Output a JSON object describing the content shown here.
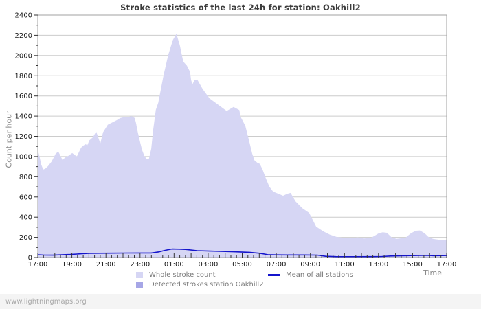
{
  "chart": {
    "title": "Stroke statistics of the last 24h for station: Oakhill2",
    "ylabel": "Count per hour",
    "xlabel": "Time"
  },
  "legend": {
    "items": [
      {
        "label": "Whole stroke count",
        "swatch": "#d6d6f4",
        "kind": "area"
      },
      {
        "label": "Detected strokes station Oakhill2",
        "swatch": "#a6a6e6",
        "kind": "area"
      },
      {
        "label": "Mean of all stations",
        "swatch": "#1414cc",
        "kind": "line"
      }
    ]
  },
  "footer": {
    "watermark": "www.lightningmaps.org"
  },
  "colors": {
    "whole_area": "#d6d6f4",
    "detected_area": "#a6a6e6",
    "mean_line": "#1414cc",
    "gridline": "#cccccc",
    "frame": "#a0a0a0",
    "tick": "#333333"
  },
  "chart_data": {
    "type": "area",
    "title": "Stroke statistics of the last 24h for station: Oakhill2",
    "xlabel": "Time",
    "ylabel": "Count per hour",
    "ylim": [
      0,
      2400
    ],
    "y_tick_step": 200,
    "y_minor_step": 100,
    "grid": "horizontal",
    "legend_position": "bottom",
    "x_axis": {
      "unit": "hours since 17:00",
      "span_hours": 24,
      "major_tick_hours": 1,
      "minor_tick_minutes": 20,
      "label_every_hours": 2,
      "tick_labels": [
        "17:00",
        "19:00",
        "21:00",
        "23:00",
        "01:00",
        "03:00",
        "05:00",
        "07:00",
        "09:00",
        "11:00",
        "13:00",
        "15:00",
        "17:00"
      ]
    },
    "series": [
      {
        "id": "whole-stroke-area",
        "name": "Whole stroke count",
        "type": "area",
        "color": "#d6d6f4",
        "points": [
          [
            0,
            1065
          ],
          [
            0.1,
            1000
          ],
          [
            0.2,
            920
          ],
          [
            0.32,
            872
          ],
          [
            0.44,
            880
          ],
          [
            0.6,
            905
          ],
          [
            0.81,
            950
          ],
          [
            1.05,
            1027
          ],
          [
            1.2,
            1050
          ],
          [
            1.35,
            1000
          ],
          [
            1.45,
            966
          ],
          [
            1.61,
            990
          ],
          [
            1.81,
            1009
          ],
          [
            2.02,
            1034
          ],
          [
            2.29,
            1000
          ],
          [
            2.54,
            1088
          ],
          [
            2.7,
            1111
          ],
          [
            2.82,
            1122
          ],
          [
            2.9,
            1109
          ],
          [
            3.03,
            1160
          ],
          [
            3.23,
            1190
          ],
          [
            3.43,
            1247
          ],
          [
            3.67,
            1130
          ],
          [
            3.83,
            1240
          ],
          [
            4.11,
            1315
          ],
          [
            4.36,
            1336
          ],
          [
            4.64,
            1360
          ],
          [
            4.84,
            1381
          ],
          [
            5.04,
            1388
          ],
          [
            5.33,
            1392
          ],
          [
            5.5,
            1400
          ],
          [
            5.69,
            1381
          ],
          [
            5.77,
            1330
          ],
          [
            5.85,
            1258
          ],
          [
            5.97,
            1168
          ],
          [
            6.12,
            1066
          ],
          [
            6.25,
            1009
          ],
          [
            6.38,
            976
          ],
          [
            6.52,
            975
          ],
          [
            6.66,
            1077
          ],
          [
            6.77,
            1258
          ],
          [
            6.93,
            1463
          ],
          [
            7.07,
            1531
          ],
          [
            7.38,
            1803
          ],
          [
            7.66,
            2007
          ],
          [
            7.93,
            2154
          ],
          [
            8.14,
            2215
          ],
          [
            8.34,
            2098
          ],
          [
            8.54,
            1939
          ],
          [
            8.75,
            1900
          ],
          [
            8.94,
            1837
          ],
          [
            9.0,
            1757
          ],
          [
            9.08,
            1716
          ],
          [
            9.2,
            1755
          ],
          [
            9.36,
            1762
          ],
          [
            9.68,
            1667
          ],
          [
            10.08,
            1576
          ],
          [
            10.49,
            1525
          ],
          [
            11.09,
            1451
          ],
          [
            11.49,
            1490
          ],
          [
            11.83,
            1460
          ],
          [
            11.9,
            1395
          ],
          [
            12.18,
            1304
          ],
          [
            12.42,
            1145
          ],
          [
            12.58,
            1032
          ],
          [
            12.71,
            964
          ],
          [
            12.91,
            935
          ],
          [
            13.03,
            928
          ],
          [
            13.19,
            873
          ],
          [
            13.39,
            782
          ],
          [
            13.59,
            703
          ],
          [
            13.79,
            658
          ],
          [
            13.92,
            645
          ],
          [
            14.4,
            612
          ],
          [
            14.64,
            630
          ],
          [
            14.84,
            640
          ],
          [
            15.13,
            556
          ],
          [
            15.53,
            488
          ],
          [
            15.93,
            442
          ],
          [
            16.34,
            306
          ],
          [
            16.74,
            261
          ],
          [
            17.14,
            227
          ],
          [
            17.55,
            204
          ],
          [
            17.95,
            195
          ],
          [
            18.35,
            190
          ],
          [
            18.76,
            200
          ],
          [
            19.16,
            188
          ],
          [
            19.56,
            196
          ],
          [
            19.77,
            215
          ],
          [
            20.01,
            240
          ],
          [
            20.25,
            250
          ],
          [
            20.49,
            245
          ],
          [
            20.77,
            200
          ],
          [
            21.06,
            185
          ],
          [
            21.58,
            195
          ],
          [
            21.9,
            240
          ],
          [
            22.19,
            265
          ],
          [
            22.43,
            268
          ],
          [
            22.71,
            240
          ],
          [
            22.91,
            207
          ],
          [
            23.19,
            185
          ],
          [
            23.6,
            175
          ],
          [
            24,
            170
          ]
        ]
      },
      {
        "id": "detected-strokes-area",
        "name": "Detected strokes station Oakhill2",
        "type": "area",
        "color": "#a6a6e6",
        "points": [
          [
            0,
            0
          ],
          [
            24,
            0
          ]
        ]
      },
      {
        "id": "mean-line",
        "name": "Mean of all stations",
        "type": "line",
        "color": "#1414cc",
        "points": [
          [
            0,
            27
          ],
          [
            0.4,
            24
          ],
          [
            0.9,
            23
          ],
          [
            1.4,
            27
          ],
          [
            1.9,
            30
          ],
          [
            2.3,
            34
          ],
          [
            2.6,
            38
          ],
          [
            3.0,
            41
          ],
          [
            3.6,
            42
          ],
          [
            4.3,
            43
          ],
          [
            5.1,
            44
          ],
          [
            6.0,
            45
          ],
          [
            6.66,
            45
          ],
          [
            7.1,
            56
          ],
          [
            7.5,
            72
          ],
          [
            7.87,
            84
          ],
          [
            8.3,
            83
          ],
          [
            8.67,
            80
          ],
          [
            9.36,
            68
          ],
          [
            10.1,
            64
          ],
          [
            10.69,
            61
          ],
          [
            11.5,
            57
          ],
          [
            12.42,
            52
          ],
          [
            13.03,
            42
          ],
          [
            13.5,
            28
          ],
          [
            14.0,
            26
          ],
          [
            14.6,
            25
          ],
          [
            15.6,
            25
          ],
          [
            16.4,
            24
          ],
          [
            16.9,
            12
          ],
          [
            17.5,
            9
          ],
          [
            18.6,
            8
          ],
          [
            19.6,
            9
          ],
          [
            20.2,
            10
          ],
          [
            20.7,
            15
          ],
          [
            21.4,
            17
          ],
          [
            22.2,
            20
          ],
          [
            22.8,
            22
          ],
          [
            23.3,
            18
          ],
          [
            23.7,
            19
          ],
          [
            24,
            20
          ]
        ]
      }
    ]
  }
}
